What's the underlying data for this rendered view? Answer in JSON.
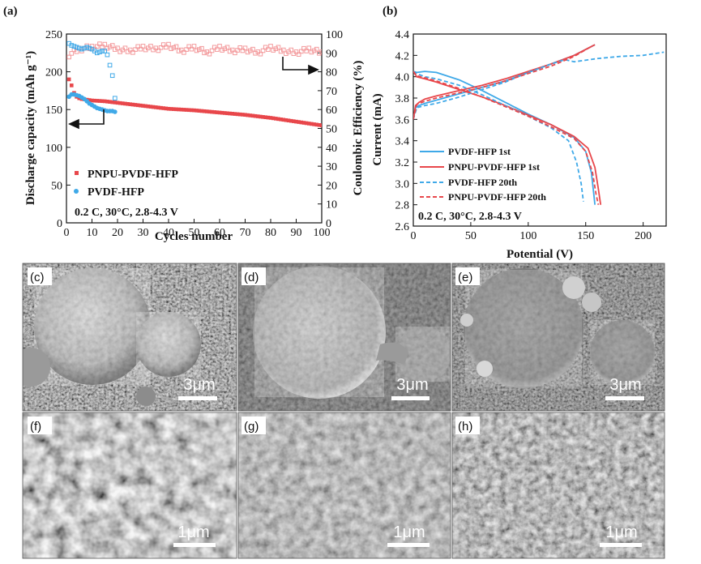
{
  "chart_data": [
    {
      "panel": "(a)",
      "type": "scatter",
      "xlabel": "Cycles number",
      "ylabel": "Discharge capacity (mAh g⁻¹)",
      "y2label": "Coulombic Efficiency (%)",
      "xlim": [
        0,
        100
      ],
      "ylim": [
        0,
        250
      ],
      "y2lim": [
        0,
        100
      ],
      "xticks": [
        0,
        10,
        20,
        30,
        40,
        50,
        60,
        70,
        80,
        90,
        100
      ],
      "yticks": [
        0,
        50,
        100,
        150,
        200,
        250
      ],
      "y2ticks": [
        0,
        10,
        20,
        30,
        40,
        50,
        60,
        70,
        80,
        90,
        100
      ],
      "condition": "0.2 C, 30°C,  2.8-4.3 V",
      "series": [
        {
          "name": "PNPU-PVDF-HFP",
          "color": "#e8474b",
          "axis": "left",
          "marker": "filled-square",
          "x": [
            1,
            2,
            3,
            4,
            5,
            6,
            8,
            10,
            15,
            20,
            30,
            40,
            50,
            60,
            70,
            80,
            90,
            100
          ],
          "values": [
            190,
            182,
            172,
            167,
            165,
            164,
            163,
            162,
            161,
            159,
            155,
            151,
            149,
            146,
            143,
            139,
            134,
            129
          ]
        },
        {
          "name": "PVDF-HFP",
          "color": "#3fa9e8",
          "axis": "left",
          "marker": "filled-circle",
          "x": [
            1,
            2,
            3,
            4,
            5,
            6,
            7,
            8,
            9,
            10,
            11,
            12,
            13,
            14,
            15,
            16,
            17,
            18,
            19
          ],
          "values": [
            167,
            170,
            170,
            169,
            168,
            166,
            164,
            161,
            158,
            156,
            154,
            152,
            151,
            150,
            149,
            148,
            148,
            148,
            147
          ]
        },
        {
          "name": "PNPU-PVDF-HFP CE",
          "color": "#f39a9c",
          "axis": "right",
          "marker": "open-square",
          "x": [
            1,
            5,
            10,
            15,
            20,
            25,
            30,
            35,
            40,
            45,
            50,
            55,
            60,
            65,
            70,
            75,
            80,
            85,
            90,
            95,
            100
          ],
          "values": [
            89,
            92,
            93,
            94,
            92,
            91,
            93,
            92,
            94,
            91,
            93,
            90,
            93,
            91,
            92,
            90,
            93,
            91,
            90,
            92,
            90
          ]
        },
        {
          "name": "PVDF-HFP CE",
          "color": "#3fa9e8",
          "axis": "right",
          "marker": "open-square",
          "x": [
            1,
            2,
            4,
            6,
            8,
            10,
            12,
            14,
            15,
            16,
            18,
            19
          ],
          "values": [
            95,
            94,
            93,
            92,
            93,
            92,
            90,
            91,
            91,
            89,
            78,
            66
          ]
        }
      ]
    },
    {
      "panel": "(b)",
      "type": "line",
      "xlabel": "Potential (V)",
      "ylabel": "Current (mA)",
      "xlim": [
        0,
        220
      ],
      "ylim": [
        2.6,
        4.4
      ],
      "xticks": [
        0,
        50,
        100,
        150,
        200
      ],
      "yticks": [
        2.6,
        2.8,
        3.0,
        3.2,
        3.4,
        3.6,
        3.8,
        4.0,
        4.2,
        4.4
      ],
      "condition": "0.2 C, 30°C,  2.8-4.3 V",
      "series": [
        {
          "name": "PVDF-HFP 1st",
          "color": "#3fa9e8",
          "style": "solid",
          "charge_x": [
            0,
            2,
            5,
            10,
            20,
            40,
            60,
            80,
            100,
            120,
            140,
            158
          ],
          "charge_y": [
            3.6,
            3.71,
            3.73,
            3.75,
            3.78,
            3.84,
            3.9,
            3.96,
            4.04,
            4.12,
            4.2,
            4.3
          ],
          "discharge_x": [
            0,
            3,
            10,
            20,
            40,
            60,
            80,
            100,
            120,
            140,
            150,
            155,
            157,
            158
          ],
          "discharge_y": [
            4.05,
            4.04,
            4.05,
            4.04,
            3.97,
            3.87,
            3.76,
            3.65,
            3.55,
            3.43,
            3.3,
            3.1,
            2.9,
            2.8
          ]
        },
        {
          "name": "PNPU-PVDF-HFP 1st",
          "color": "#e8474b",
          "style": "solid",
          "charge_x": [
            0,
            2,
            5,
            10,
            20,
            40,
            60,
            80,
            100,
            120,
            140,
            158
          ],
          "charge_y": [
            3.6,
            3.73,
            3.76,
            3.79,
            3.82,
            3.87,
            3.92,
            3.98,
            4.05,
            4.12,
            4.2,
            4.3
          ],
          "discharge_x": [
            0,
            3,
            10,
            20,
            40,
            60,
            80,
            100,
            120,
            140,
            152,
            158,
            161,
            163
          ],
          "discharge_y": [
            4.05,
            4.0,
            3.98,
            3.95,
            3.88,
            3.81,
            3.73,
            3.64,
            3.55,
            3.44,
            3.33,
            3.15,
            2.95,
            2.8
          ]
        },
        {
          "name": "PVDF-HFP 20th",
          "color": "#3fa9e8",
          "style": "dashed",
          "charge_x": [
            0,
            3,
            10,
            20,
            40,
            60,
            80,
            100,
            120,
            132,
            140,
            160,
            180,
            200,
            218
          ],
          "charge_y": [
            3.6,
            3.71,
            3.73,
            3.75,
            3.81,
            3.88,
            3.95,
            4.04,
            4.12,
            4.16,
            4.14,
            4.17,
            4.19,
            4.2,
            4.23
          ],
          "discharge_x": [
            0,
            3,
            10,
            20,
            40,
            60,
            80,
            100,
            120,
            135,
            142,
            146,
            148
          ],
          "discharge_y": [
            4.05,
            4.03,
            4.0,
            3.98,
            3.92,
            3.83,
            3.73,
            3.63,
            3.52,
            3.4,
            3.2,
            3.0,
            2.83
          ]
        },
        {
          "name": "PNPU-PVDF-HFP 20th",
          "color": "#e8474b",
          "style": "dashed",
          "charge_x": [
            0,
            3,
            10,
            20,
            40,
            60,
            80,
            100,
            120,
            140,
            156
          ],
          "charge_y": [
            3.6,
            3.74,
            3.77,
            3.8,
            3.85,
            3.9,
            3.96,
            4.03,
            4.1,
            4.19,
            4.29
          ],
          "discharge_x": [
            0,
            3,
            10,
            20,
            40,
            60,
            80,
            100,
            120,
            140,
            150,
            156,
            159,
            161
          ],
          "discharge_y": [
            4.05,
            4.01,
            3.99,
            3.96,
            3.89,
            3.81,
            3.72,
            3.63,
            3.53,
            3.42,
            3.3,
            3.1,
            2.9,
            2.8
          ]
        }
      ]
    }
  ],
  "sem_panels": [
    {
      "letter": "(c)",
      "scale": "3μm"
    },
    {
      "letter": "(d)",
      "scale": "3μm"
    },
    {
      "letter": "(e)",
      "scale": "3μm"
    },
    {
      "letter": "(f)",
      "scale": "1μm"
    },
    {
      "letter": "(g)",
      "scale": "1μm"
    },
    {
      "letter": "(h)",
      "scale": "1μm"
    }
  ]
}
